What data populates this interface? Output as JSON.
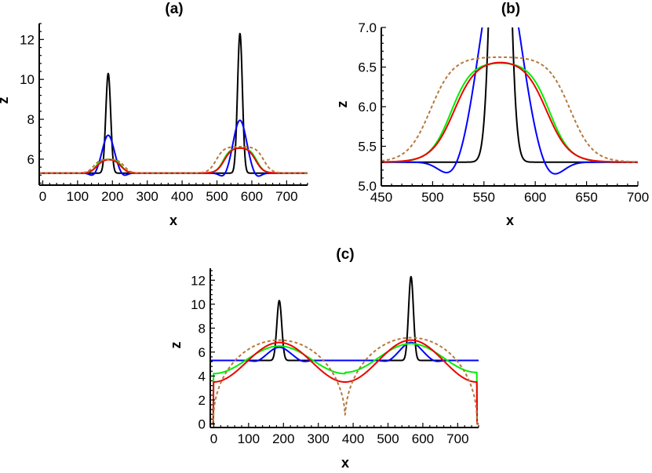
{
  "chart_data": [
    {
      "type": "line",
      "title": "(a)",
      "xlabel": "x",
      "ylabel": "z",
      "xlim": [
        -10,
        760
      ],
      "ylim": [
        4.7,
        12.8
      ],
      "xticks": [
        0,
        100,
        200,
        300,
        400,
        500,
        600,
        700
      ],
      "yticks": [
        6,
        8,
        10,
        12
      ],
      "series": [
        {
          "color": "#000000",
          "dashed": false,
          "base": 5.3,
          "bumps": [
            {
              "c": 188,
              "w": 7,
              "h": 5.0
            },
            {
              "c": 566,
              "w": 7,
              "h": 7.0
            }
          ]
        },
        {
          "color": "#0000ff",
          "dashed": false,
          "base": 5.3,
          "bumps": [
            {
              "c": 188,
              "w": 17,
              "h": 1.9
            },
            {
              "c": 566,
              "w": 19,
              "h": 2.65
            }
          ],
          "dips": [
            {
              "c": 145,
              "w": 10,
              "h": 0.15
            },
            {
              "c": 232,
              "w": 10,
              "h": 0.15
            },
            {
              "c": 520,
              "w": 12,
              "h": 0.22
            },
            {
              "c": 614,
              "w": 12,
              "h": 0.22
            }
          ]
        },
        {
          "color": "#00ee00",
          "dashed": false,
          "base": 5.3,
          "plateaus": [
            {
              "c": 190,
              "half": 37,
              "s": 8,
              "h": 0.7
            },
            {
              "c": 566,
              "half": 48,
              "s": 10,
              "h": 1.27
            }
          ]
        },
        {
          "color": "#ee0000",
          "dashed": false,
          "base": 5.3,
          "plateaus": [
            {
              "c": 190,
              "half": 34,
              "s": 10,
              "h": 0.72
            },
            {
              "c": 566,
              "half": 45,
              "s": 11,
              "h": 1.3
            }
          ]
        },
        {
          "color": "#b5793e",
          "dashed": true,
          "base": 5.3,
          "plateaus": [
            {
              "c": 190,
              "half": 44,
              "s": 9,
              "h": 0.7
            },
            {
              "c": 566,
              "half": 68,
              "s": 11,
              "h": 1.33
            }
          ]
        }
      ]
    },
    {
      "type": "line",
      "title": "(b)",
      "xlabel": "x",
      "ylabel": "z",
      "xlim": [
        450,
        700
      ],
      "ylim": [
        5.0,
        7.0
      ],
      "xticks": [
        450,
        500,
        550,
        600,
        650,
        700
      ],
      "yticks": [
        5.0,
        5.5,
        6.0,
        6.5,
        7.0
      ],
      "ytick_labels": [
        "5.0",
        "5.5",
        "6.0",
        "6.5",
        "7.0"
      ],
      "series": [
        {
          "color": "#000000",
          "dashed": false,
          "base": 5.3,
          "bumps": [
            {
              "c": 566,
              "w": 7,
              "h": 7.0
            }
          ]
        },
        {
          "color": "#0000ff",
          "dashed": false,
          "base": 5.3,
          "bumps": [
            {
              "c": 566,
              "w": 19,
              "h": 2.65
            }
          ],
          "dips": [
            {
              "c": 520,
              "w": 12,
              "h": 0.22
            },
            {
              "c": 614,
              "w": 12,
              "h": 0.22
            }
          ]
        },
        {
          "color": "#00ee00",
          "dashed": false,
          "base": 5.3,
          "plateaus": [
            {
              "c": 566,
              "half": 48,
              "s": 10,
              "h": 1.27
            }
          ]
        },
        {
          "color": "#ee0000",
          "dashed": false,
          "base": 5.3,
          "plateaus": [
            {
              "c": 566,
              "half": 45,
              "s": 11,
              "h": 1.3
            }
          ]
        },
        {
          "color": "#b5793e",
          "dashed": true,
          "base": 5.3,
          "plateaus": [
            {
              "c": 566,
              "half": 68,
              "s": 11,
              "h": 1.33
            }
          ]
        }
      ]
    },
    {
      "type": "line",
      "title": "(c)",
      "xlabel": "x",
      "ylabel": "z",
      "xlim": [
        -10,
        760
      ],
      "ylim": [
        -0.3,
        13
      ],
      "xticks": [
        0,
        100,
        200,
        300,
        400,
        500,
        600,
        700
      ],
      "yticks": [
        0,
        2,
        4,
        6,
        8,
        10,
        12
      ],
      "series": [
        {
          "color": "#000000",
          "dashed": false,
          "base": 5.3,
          "bumps": [
            {
              "c": 188,
              "w": 7,
              "h": 5.0
            },
            {
              "c": 566,
              "w": 7,
              "h": 7.0
            }
          ]
        },
        {
          "color": "#0000ff",
          "dashed": false,
          "base": 5.3,
          "bumps": [
            {
              "c": 188,
              "w": 30,
              "h": 1.1
            },
            {
              "c": 566,
              "w": 30,
              "h": 1.5
            }
          ],
          "dips": [
            {
              "c": 125,
              "w": 14,
              "h": 0.15
            },
            {
              "c": 255,
              "w": 14,
              "h": 0.15
            },
            {
              "c": 500,
              "w": 14,
              "h": 0.15
            },
            {
              "c": 635,
              "w": 14,
              "h": 0.15
            }
          ]
        },
        {
          "color": "#00ee00",
          "dashed": false,
          "arches": {
            "centers": [
              188,
              566
            ],
            "halfwidth": 189,
            "peak": [
              6.5,
              6.7
            ],
            "valley": [
              4.2,
              4.3
            ],
            "cusp": false
          }
        },
        {
          "color": "#ee0000",
          "dashed": false,
          "arches": {
            "centers": [
              188,
              566
            ],
            "halfwidth": 189,
            "peak": [
              6.8,
              7.0
            ],
            "valley": [
              3.5,
              3.5
            ],
            "cusp": false
          }
        },
        {
          "color": "#b5793e",
          "dashed": true,
          "arches": {
            "centers": [
              188,
              566
            ],
            "halfwidth": 189,
            "peak": [
              7.0,
              7.2
            ],
            "valley": [
              0.4,
              0.4
            ],
            "cusp": true
          }
        }
      ]
    }
  ]
}
